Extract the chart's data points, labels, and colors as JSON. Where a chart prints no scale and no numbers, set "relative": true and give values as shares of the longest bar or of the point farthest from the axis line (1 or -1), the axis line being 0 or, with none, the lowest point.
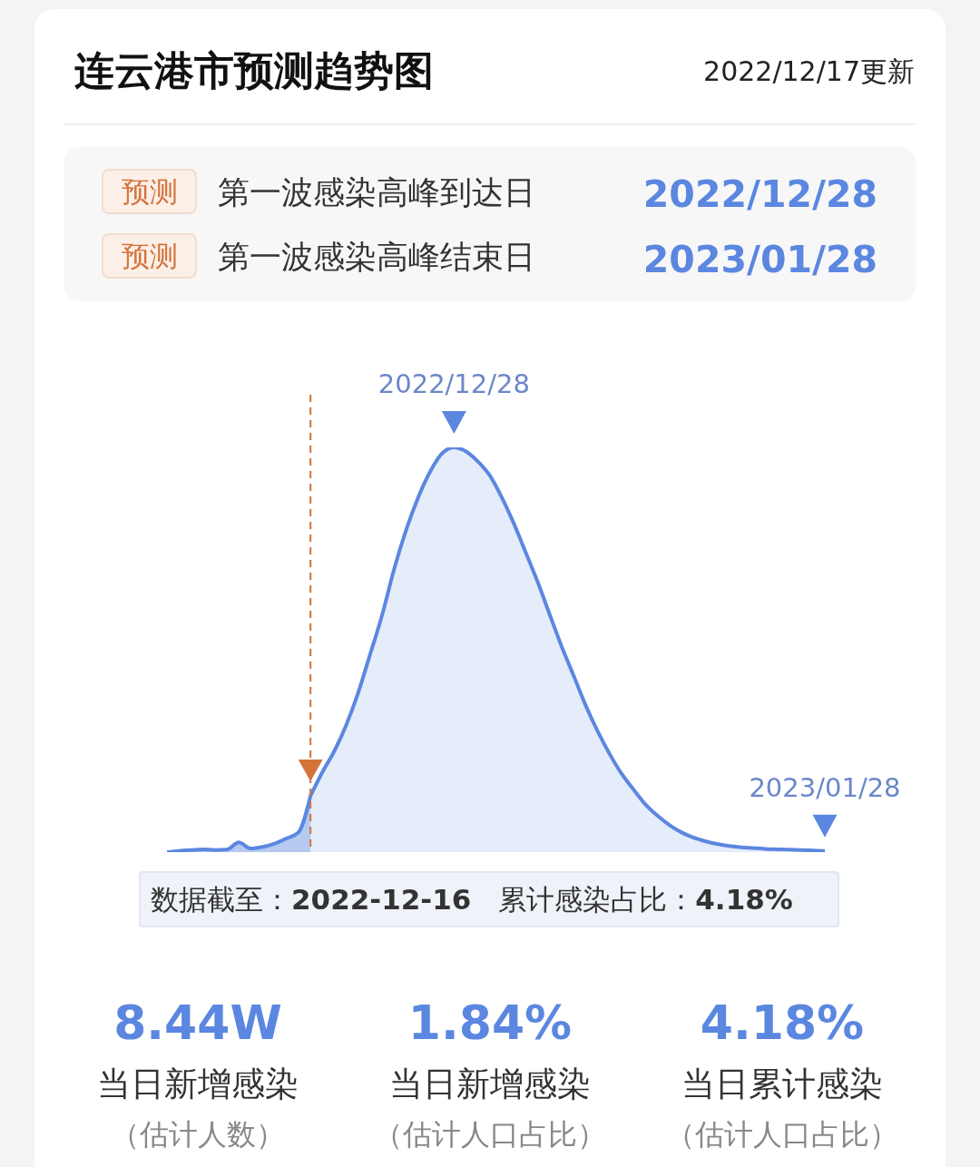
{
  "chart_data": {
    "type": "area",
    "title": "连云港市预测趋势图",
    "subtitle": "2022/12/17更新",
    "relative": true,
    "tick_labels": false,
    "categories": [
      null,
      null,
      null,
      null,
      null,
      null,
      null,
      null,
      null,
      null,
      null,
      null,
      null,
      null,
      null,
      null,
      null,
      null,
      null,
      null,
      null,
      null,
      null,
      null,
      null,
      null,
      null,
      null,
      null,
      null,
      null,
      null,
      null,
      null,
      null,
      null,
      null,
      null,
      null,
      null,
      null,
      null,
      null,
      null,
      null,
      null,
      null,
      null,
      null,
      null,
      null,
      null,
      null,
      null,
      null,
      null
    ],
    "series": [
      {
        "color": "#5b87e0",
        "values": [
          0.0,
          0.003,
          0.005,
          0.007,
          0.005,
          0.006,
          0.024,
          0.009,
          0.013,
          0.021,
          0.034,
          0.049,
          0.139,
          null,
          null,
          null,
          null,
          null,
          null,
          null,
          null,
          null,
          null,
          null,
          null,
          null,
          null,
          null,
          null,
          null,
          null,
          null,
          null,
          null,
          null,
          null,
          null,
          null,
          null,
          null,
          null,
          null,
          null,
          null,
          null,
          null,
          null,
          null,
          null,
          null,
          null,
          null,
          null,
          null,
          null,
          null
        ]
      },
      {
        "color": "#5b87e0",
        "values": [
          null,
          null,
          null,
          null,
          null,
          null,
          null,
          null,
          null,
          null,
          null,
          null,
          0.139,
          0.198,
          0.25,
          0.315,
          0.395,
          0.49,
          0.587,
          0.7,
          0.796,
          0.876,
          0.94,
          0.985,
          1.0,
          0.99,
          0.965,
          0.93,
          0.876,
          0.812,
          0.74,
          0.667,
          0.587,
          0.508,
          0.436,
          0.363,
          0.299,
          0.243,
          0.194,
          0.155,
          0.118,
          0.09,
          0.067,
          0.049,
          0.036,
          0.027,
          0.02,
          0.015,
          0.012,
          0.01,
          0.008,
          0.007,
          0.006,
          0.005,
          0.004,
          0.003
        ]
      }
    ],
    "annotations": [
      {
        "text": "2022/12/28",
        "y": 1.0
      },
      {
        "text": "2023/01/28",
        "y": 0.003
      },
      "预测",
      "第一波感染高峰到达日",
      "2022/12/28",
      "预测",
      "第一波感染高峰结束日",
      "2023/01/28",
      "数据截至：",
      "2022-12-16",
      "累计感染占比：",
      "4.18%",
      "8.44W",
      "当日新增感染",
      "（估计人数）",
      "1.84%",
      "当日新增感染",
      "（估计人口占比）",
      "4.18%",
      "当日累计感染",
      "（估计人口占比）"
    ]
  }
}
